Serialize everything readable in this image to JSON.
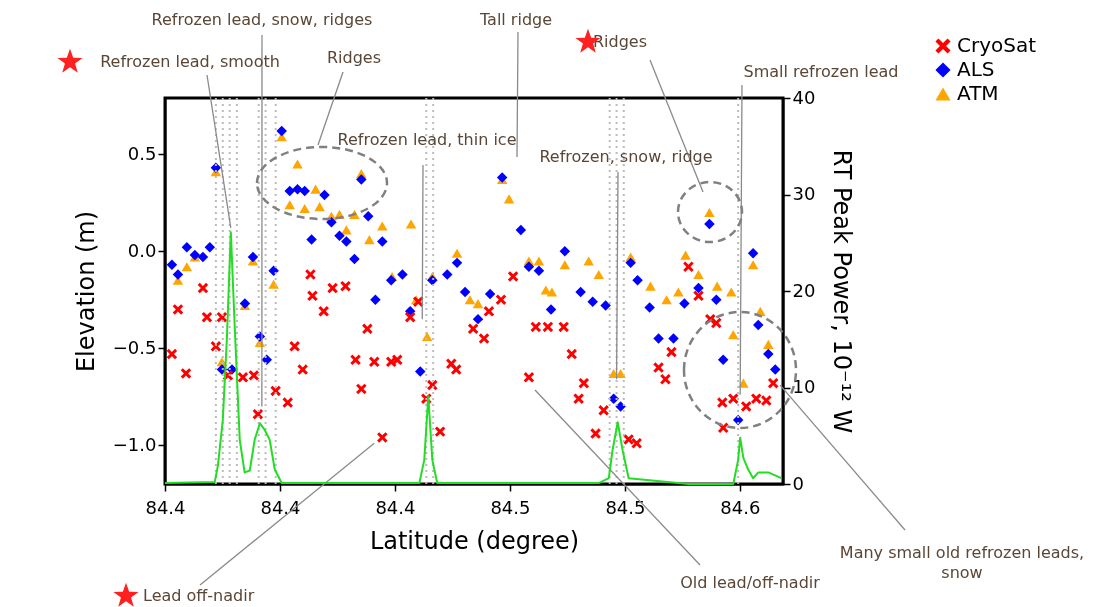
{
  "chart_data": {
    "type": "scatter",
    "xlabel": "Latitude (degree)",
    "ylabel": "Elevation (m)",
    "y2label": "RT Peak Power, 10⁻¹² W",
    "xlim": [
      84.36,
      84.575
    ],
    "xticks": [
      {
        "value": 84.36,
        "label": "84.4"
      },
      {
        "value": 84.4,
        "label": "84.4"
      },
      {
        "value": 84.44,
        "label": "84.4"
      },
      {
        "value": 84.48,
        "label": "84.5"
      },
      {
        "value": 84.52,
        "label": "84.5"
      },
      {
        "value": 84.56,
        "label": "84.6"
      }
    ],
    "ylim": [
      -1.2,
      0.79
    ],
    "yticks": [
      {
        "value": -1,
        "label": "−1.0"
      },
      {
        "value": -0.5,
        "label": "−0.5"
      },
      {
        "value": 0,
        "label": "0.0"
      },
      {
        "value": 0.5,
        "label": "0.5"
      }
    ],
    "y2lim": [
      0,
      40
    ],
    "y2ticks": [
      0,
      10,
      20,
      30,
      40
    ],
    "legend": "right",
    "series": [
      {
        "name": "CryoSat",
        "color": "#ff0000",
        "marker": "cross",
        "x": [
          84.3624,
          84.3645,
          84.3673,
          84.3732,
          84.3746,
          84.3798,
          84.3777,
          84.3819,
          84.3871,
          84.3909,
          84.3923,
          84.3985,
          84.4027,
          84.4051,
          84.4079,
          84.4106,
          84.4113,
          84.4152,
          84.4183,
          84.4228,
          84.4304,
          84.4263,
          84.4283,
          84.4328,
          84.4356,
          84.4387,
          84.4408,
          84.4453,
          84.4481,
          84.4509,
          84.453,
          84.4557,
          84.4596,
          84.4613,
          84.4672,
          84.471,
          84.4727,
          84.4769,
          84.4811,
          84.4866,
          84.489,
          84.4932,
          84.4987,
          84.5015,
          84.5057,
          84.5039,
          84.5098,
          84.5126,
          84.5213,
          84.5241,
          84.5317,
          84.5341,
          84.5362,
          84.5421,
          84.5456,
          84.5497,
          84.5518,
          84.5539,
          84.5542,
          84.5577,
          84.5622,
          84.5657,
          84.5692,
          84.5716
        ],
        "values": [
          -0.53,
          -0.3,
          -0.63,
          -0.19,
          -0.34,
          -0.34,
          -0.49,
          -0.64,
          -0.65,
          -0.64,
          -0.84,
          -0.72,
          -0.78,
          -0.49,
          -0.61,
          -0.12,
          -0.23,
          -0.31,
          -0.19,
          -0.18,
          -0.4,
          -0.56,
          -0.71,
          -0.57,
          -0.96,
          -0.57,
          -0.56,
          -0.34,
          -0.26,
          -0.76,
          -0.69,
          -0.93,
          -0.58,
          -0.61,
          -0.4,
          -0.45,
          -0.31,
          -0.25,
          -0.13,
          -0.65,
          -0.39,
          -0.39,
          -0.39,
          -0.53,
          -0.68,
          -0.76,
          -0.94,
          -0.82,
          -0.97,
          -0.99,
          -0.6,
          -0.66,
          -0.52,
          -0.08,
          -0.23,
          -0.35,
          -0.37,
          -0.78,
          -0.91,
          -0.76,
          -0.8,
          -0.76,
          -0.77,
          -0.68
        ]
      },
      {
        "name": "ALS",
        "color": "#0000ff",
        "marker": "diamond",
        "x": [
          84.3624,
          84.3645,
          84.3676,
          84.3704,
          84.3732,
          84.3756,
          84.3777,
          84.3798,
          84.3833,
          84.3878,
          84.3906,
          84.393,
          84.3954,
          84.3978,
          84.4006,
          84.4034,
          84.4061,
          84.4086,
          84.411,
          84.4155,
          84.4179,
          84.4207,
          84.4231,
          84.4259,
          84.4283,
          84.4307,
          84.4332,
          84.4356,
          84.4387,
          84.4426,
          84.4453,
          84.4488,
          84.453,
          84.4582,
          84.4616,
          84.4644,
          84.4689,
          84.4731,
          84.4773,
          84.4838,
          84.4866,
          84.4901,
          84.4943,
          84.4991,
          84.5046,
          84.5088,
          84.5133,
          84.5161,
          84.5185,
          84.522,
          84.5244,
          84.5286,
          84.5317,
          84.5369,
          84.5407,
          84.5456,
          84.5494,
          84.5518,
          84.5542,
          84.5594,
          84.5646,
          84.5664,
          84.5699,
          84.5723
        ],
        "values": [
          -0.07,
          -0.12,
          0.02,
          -0.02,
          -0.03,
          0.02,
          0.43,
          -0.61,
          -0.61,
          -0.27,
          -0.03,
          -0.44,
          -0.56,
          -0.1,
          0.62,
          0.31,
          0.32,
          0.31,
          0.06,
          0.29,
          0.15,
          0.08,
          0.05,
          -0.04,
          0.37,
          0.18,
          -0.25,
          0.05,
          -0.15,
          -0.12,
          -0.31,
          -0.62,
          -0.15,
          -0.12,
          -0.06,
          -0.21,
          -0.35,
          -0.22,
          0.38,
          0.11,
          -0.08,
          -0.1,
          -0.3,
          0.0,
          -0.21,
          -0.26,
          -0.28,
          -0.76,
          -0.8,
          -0.06,
          -0.15,
          -0.29,
          -0.45,
          -0.45,
          -0.27,
          -0.19,
          0.14,
          -0.25,
          -0.56,
          -0.87,
          -0.01,
          -0.38,
          -0.53,
          -0.61
        ]
      },
      {
        "name": "ATM",
        "color": "#ffa500",
        "marker": "triangle",
        "x": [
          84.3645,
          84.3676,
          84.3704,
          84.3777,
          84.3798,
          84.3878,
          84.3906,
          84.393,
          84.3978,
          84.4006,
          84.4034,
          84.4061,
          84.4086,
          84.4124,
          84.4138,
          84.4179,
          84.4207,
          84.4231,
          84.4259,
          84.4283,
          84.4311,
          84.4356,
          84.439,
          84.4456,
          84.4474,
          84.4512,
          84.453,
          84.4616,
          84.4661,
          84.4689,
          84.4773,
          84.4797,
          84.4866,
          84.4901,
          84.4925,
          84.4946,
          84.4991,
          84.5074,
          84.5109,
          84.5161,
          84.5185,
          84.522,
          84.5289,
          84.5345,
          84.5386,
          84.5411,
          84.5456,
          84.5494,
          84.5521,
          84.557,
          84.5577,
          84.5612,
          84.5646,
          84.5671,
          84.5699
        ],
        "values": [
          -0.15,
          -0.08,
          -0.03,
          0.41,
          -0.57,
          -0.28,
          -0.05,
          -0.47,
          -0.17,
          0.59,
          0.24,
          0.45,
          0.22,
          0.32,
          0.23,
          0.18,
          0.19,
          0.11,
          0.19,
          0.4,
          0.06,
          0.13,
          -0.13,
          0.14,
          -0.25,
          -0.44,
          -0.13,
          -0.01,
          -0.25,
          -0.27,
          0.37,
          0.27,
          -0.05,
          -0.05,
          -0.2,
          -0.21,
          -0.07,
          -0.05,
          -0.12,
          -0.63,
          -0.63,
          -0.03,
          -0.18,
          -0.25,
          -0.21,
          -0.02,
          -0.12,
          0.2,
          -0.18,
          -0.21,
          -0.43,
          -0.68,
          -0.07,
          -0.31,
          -0.48
        ]
      },
      {
        "type": "line",
        "axis": "y2",
        "color": "#22dd22",
        "x": [
          84.36,
          84.3773,
          84.3784,
          84.3801,
          84.3815,
          84.3829,
          84.3843,
          84.386,
          84.3877,
          84.3895,
          84.3912,
          84.393,
          84.3947,
          84.3964,
          84.3982,
          84.4006,
          84.4485,
          84.4502,
          84.4516,
          84.453,
          84.4547,
          84.5109,
          84.5144,
          84.5157,
          84.5175,
          84.5192,
          84.5213,
          84.5421,
          84.5577,
          84.5594,
          84.5601,
          84.5612,
          84.5629,
          84.5646,
          84.5664,
          84.5699,
          84.5744
        ],
        "values": [
          0.1,
          0.2,
          1.9,
          6.6,
          14.9,
          26.1,
          16.0,
          4.6,
          1.2,
          1.4,
          4.6,
          6.3,
          5.6,
          4.6,
          1.5,
          0.1,
          0.1,
          2.5,
          9.1,
          2.5,
          0.1,
          0.1,
          0.6,
          3.5,
          6.4,
          3.5,
          0.6,
          0.0,
          0.0,
          2.5,
          4.8,
          2.7,
          1.5,
          0.6,
          1.2,
          1.2,
          0.6
        ]
      }
    ],
    "ref_lines": [
      {
        "axis": "x",
        "value": 84.3777,
        "color": "#bbbbbb",
        "line_style": "dotted"
      },
      {
        "axis": "x",
        "value": 84.3801,
        "color": "#bbbbbb",
        "line_style": "dotted"
      },
      {
        "axis": "x",
        "value": 84.3825,
        "color": "#bbbbbb",
        "line_style": "dotted"
      },
      {
        "axis": "x",
        "value": 84.385,
        "color": "#bbbbbb",
        "line_style": "dotted"
      },
      {
        "axis": "x",
        "value": 84.3926,
        "color": "#bbbbbb",
        "line_style": "dotted"
      },
      {
        "axis": "x",
        "value": 84.395,
        "color": "#bbbbbb",
        "line_style": "dotted"
      },
      {
        "axis": "x",
        "value": 84.3985,
        "color": "#bbbbbb",
        "line_style": "dotted"
      },
      {
        "axis": "x",
        "value": 84.4509,
        "color": "#bbbbbb",
        "line_style": "dotted"
      },
      {
        "axis": "x",
        "value": 84.4533,
        "color": "#bbbbbb",
        "line_style": "dotted"
      },
      {
        "axis": "x",
        "value": 84.5147,
        "color": "#bbbbbb",
        "line_style": "dotted"
      },
      {
        "axis": "x",
        "value": 84.5171,
        "color": "#bbbbbb",
        "line_style": "dotted"
      },
      {
        "axis": "x",
        "value": 84.5196,
        "color": "#bbbbbb",
        "line_style": "dotted"
      },
      {
        "axis": "x",
        "value": 84.5594,
        "color": "#bbbbbb",
        "line_style": "dotted"
      }
    ],
    "annotations": [
      {
        "text": "Refrozen lead, smooth",
        "x": 84.3829,
        "y": 0.12
      },
      {
        "text": "Refrozen lead, snow, ridges",
        "x": 84.3937,
        "y": -0.8
      },
      "Ridges",
      {
        "text": "Refrozen lead, thin ice",
        "x": 84.4495,
        "y": -0.35
      },
      "Tall ridge",
      "Ridges",
      {
        "text": "Small refrozen lead",
        "x": 84.5601,
        "y": -0.74
      },
      {
        "text": "Refrozen, snow, ridge",
        "x": 84.5171,
        "y": -0.66
      },
      {
        "text": "Many small old refrozen leads, snow",
        "x": 84.574,
        "y": -0.69
      },
      "Old lead/off-nadir",
      {
        "text": "Lead off-nadir",
        "x": 84.4328,
        "y": -0.99
      }
    ]
  }
}
